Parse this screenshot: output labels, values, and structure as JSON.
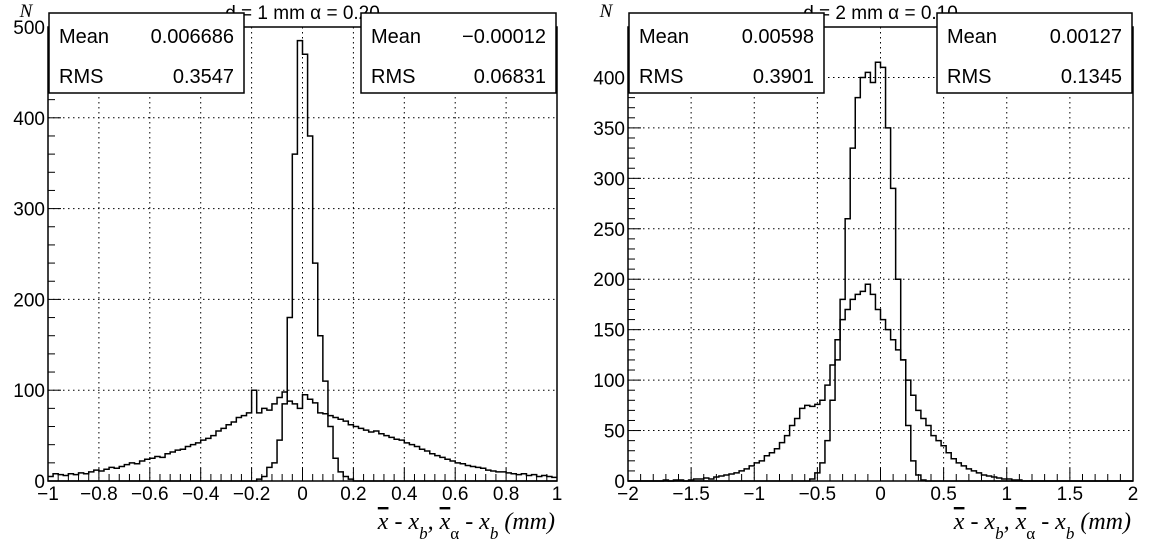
{
  "chart_data": [
    {
      "type": "histogram",
      "title": "d =  1 mm   α = 0.20",
      "ylabel": "N",
      "xlabel_parts": [
        "x",
        " - x",
        "b",
        ", ",
        "x",
        "α",
        " - x",
        "b",
        " (mm)"
      ],
      "xlim": [
        -1,
        1
      ],
      "ylim": [
        0,
        500
      ],
      "grid": true,
      "x_ticks": [
        -1,
        -0.8,
        -0.6,
        -0.4,
        -0.2,
        0,
        0.2,
        0.4,
        0.6,
        0.8,
        1
      ],
      "x_tick_labels": [
        "−1",
        "−0.8",
        "−0.6",
        "−0.4",
        "−0.2",
        "0",
        "0.2",
        "0.4",
        "0.6",
        "0.8",
        "1"
      ],
      "y_ticks": [
        0,
        100,
        200,
        300,
        400,
        500
      ],
      "y_tick_labels": [
        "0",
        "100",
        "200",
        "300",
        "400",
        "500"
      ],
      "stats": [
        {
          "Mean": "0.006686",
          "RMS": "0.3547"
        },
        {
          "Mean": "−0.00012",
          "RMS": "0.06831"
        }
      ],
      "bin_edges_start": -1,
      "bin_width": 0.02,
      "series": [
        {
          "values": [
            5,
            8,
            7,
            6,
            8,
            7,
            9,
            8,
            10,
            12,
            11,
            13,
            15,
            14,
            16,
            18,
            20,
            19,
            22,
            24,
            25,
            27,
            26,
            30,
            32,
            34,
            35,
            38,
            40,
            42,
            45,
            47,
            50,
            55,
            58,
            62,
            65,
            70,
            72,
            75,
            100,
            75,
            80,
            78,
            85,
            92,
            98,
            88,
            85,
            80,
            95,
            90,
            86,
            75,
            74,
            72,
            70,
            68,
            66,
            62,
            60,
            58,
            56,
            54,
            55,
            52,
            50,
            48,
            46,
            45,
            42,
            40,
            38,
            35,
            33,
            30,
            28,
            26,
            24,
            22,
            20,
            19,
            17,
            16,
            15,
            14,
            12,
            11,
            10,
            10,
            9,
            8,
            7,
            8,
            6,
            7,
            5,
            6,
            5,
            4
          ]
        },
        {
          "values": [
            0,
            0,
            0,
            0,
            0,
            0,
            0,
            0,
            0,
            0,
            0,
            0,
            0,
            0,
            0,
            0,
            0,
            0,
            0,
            0,
            0,
            0,
            0,
            0,
            0,
            0,
            0,
            0,
            0,
            0,
            0,
            0,
            0,
            0,
            0,
            0,
            0,
            0,
            0,
            0,
            0,
            2,
            5,
            15,
            20,
            45,
            85,
            180,
            360,
            485,
            470,
            380,
            240,
            160,
            110,
            60,
            25,
            10,
            5,
            2,
            0,
            0,
            0,
            0,
            0,
            0,
            0,
            0,
            0,
            0,
            0,
            0,
            0,
            0,
            0,
            0,
            0,
            0,
            0,
            0,
            0,
            0,
            0,
            0,
            0,
            0,
            0,
            0,
            0,
            0,
            0,
            0,
            0,
            0,
            0,
            0,
            0,
            0,
            0,
            0
          ]
        }
      ]
    },
    {
      "type": "histogram",
      "title": "d =  2 mm   α = 0.10",
      "ylabel": "N",
      "xlabel_parts": [
        "x",
        " - x",
        "b",
        ", ",
        "x",
        "α",
        " - x",
        "b",
        " (mm)"
      ],
      "xlim": [
        -2,
        2
      ],
      "ylim": [
        0,
        450
      ],
      "grid": true,
      "x_ticks": [
        -2,
        -1.5,
        -1,
        -0.5,
        0,
        0.5,
        1,
        1.5,
        2
      ],
      "x_tick_labels": [
        "−2",
        "−1.5",
        "−1",
        "−0.5",
        "0",
        "0.5",
        "1",
        "1.5",
        "2"
      ],
      "y_ticks": [
        0,
        50,
        100,
        150,
        200,
        250,
        300,
        350,
        400
      ],
      "y_tick_labels": [
        "0",
        "50",
        "100",
        "150",
        "200",
        "250",
        "300",
        "350",
        "400"
      ],
      "stats": [
        {
          "Mean": "0.00598",
          "RMS": "0.3901"
        },
        {
          "Mean": "0.00127",
          "RMS": "0.1345"
        }
      ],
      "bin_edges_start": -2,
      "bin_width": 0.04,
      "series": [
        {
          "values": [
            0,
            0,
            0,
            0,
            0,
            0,
            0,
            1,
            0,
            1,
            1,
            0,
            1,
            2,
            2,
            3,
            2,
            4,
            5,
            6,
            7,
            8,
            10,
            12,
            15,
            18,
            20,
            25,
            28,
            32,
            38,
            45,
            55,
            62,
            72,
            75,
            74,
            76,
            80,
            95,
            115,
            140,
            160,
            170,
            180,
            185,
            188,
            195,
            185,
            170,
            160,
            150,
            140,
            130,
            120,
            100,
            85,
            70,
            62,
            55,
            45,
            40,
            35,
            28,
            22,
            18,
            15,
            12,
            10,
            8,
            6,
            5,
            4,
            3,
            2,
            2,
            1,
            1,
            0,
            0,
            0,
            0,
            0,
            0,
            0,
            0,
            0,
            0,
            0,
            0,
            0,
            0,
            0,
            0,
            0,
            0,
            0,
            0,
            0,
            0
          ]
        },
        {
          "values": [
            0,
            0,
            0,
            0,
            0,
            0,
            0,
            0,
            0,
            0,
            0,
            0,
            0,
            0,
            0,
            0,
            0,
            0,
            0,
            0,
            0,
            0,
            0,
            0,
            0,
            0,
            0,
            0,
            0,
            0,
            0,
            0,
            0,
            0,
            0,
            0,
            2,
            8,
            18,
            40,
            80,
            120,
            180,
            260,
            330,
            380,
            400,
            405,
            395,
            415,
            410,
            350,
            290,
            200,
            120,
            55,
            20,
            6,
            1,
            0,
            0,
            0,
            0,
            0,
            0,
            0,
            0,
            0,
            0,
            0,
            0,
            0,
            0,
            0,
            0,
            0,
            0,
            0,
            0,
            0,
            0,
            0,
            0,
            0,
            0,
            0,
            0,
            0,
            0,
            0,
            0,
            0,
            0,
            0,
            0,
            0,
            0,
            0,
            0,
            0
          ]
        }
      ]
    }
  ]
}
